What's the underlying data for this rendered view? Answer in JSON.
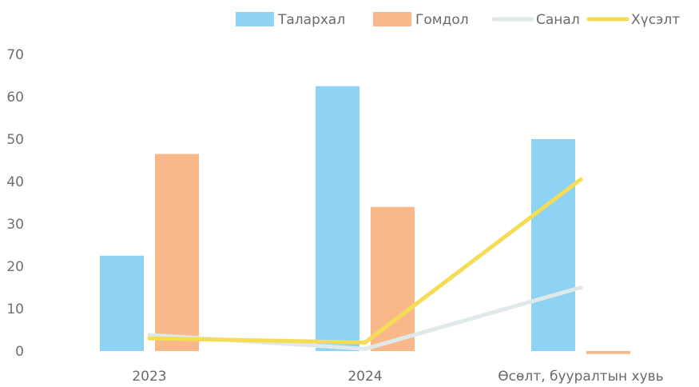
{
  "chart_data": {
    "type": "bar",
    "categories": [
      "2023",
      "2024",
      "Өсөлт, бууралтын хувь"
    ],
    "ylim": [
      0,
      70
    ],
    "yticks": [
      0,
      10,
      20,
      30,
      40,
      50,
      60,
      70
    ],
    "grid": false,
    "legend_position": "top-right",
    "series": [
      {
        "name": "Талархал",
        "type": "bar",
        "color": "#8fd3f4",
        "values": [
          22.5,
          62.5,
          50
        ]
      },
      {
        "name": "Гомдол",
        "type": "bar",
        "color": "#f9b88a",
        "values": [
          46.5,
          34,
          -0.7
        ]
      },
      {
        "name": "Санал",
        "type": "line",
        "color": "#dfe9ea",
        "values": [
          3.8,
          0.5,
          15
        ]
      },
      {
        "name": "Хүсэлт",
        "type": "line",
        "color": "#f5dc55",
        "values": [
          3,
          2,
          40.5
        ]
      }
    ]
  }
}
